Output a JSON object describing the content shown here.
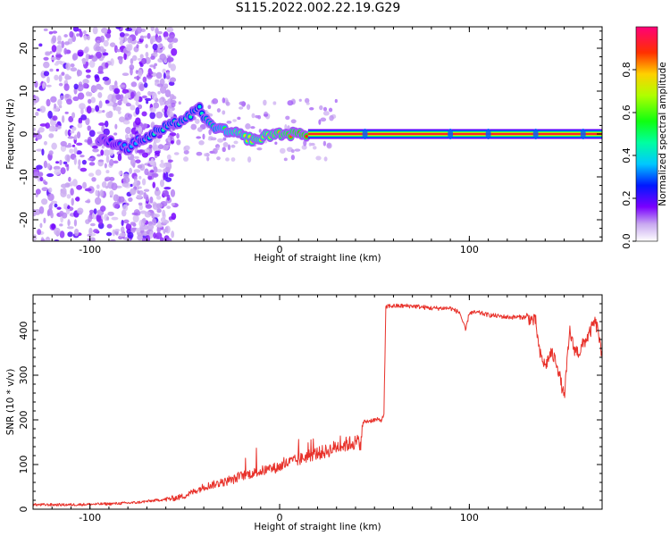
{
  "title": "S115.2022.002.22.19.G29",
  "chart_data": [
    {
      "type": "heatmap",
      "title": "S115.2022.002.22.19.G29",
      "xlabel": "Height of straight line (km)",
      "ylabel": "Frequency (Hz)",
      "xlim": [
        -130,
        170
      ],
      "ylim": [
        -25,
        25
      ],
      "xticks": [
        -100,
        0,
        100
      ],
      "yticks": [
        -20,
        -10,
        0,
        10,
        20
      ],
      "xtick_labels": [
        "-100",
        "0",
        "100"
      ],
      "ytick_labels": [
        "-20",
        "-10",
        "0",
        "10",
        "20"
      ],
      "colorbar": {
        "label": "Normalized spectral amplitude",
        "range": [
          0,
          1
        ],
        "ticks": [
          0.0,
          0.2,
          0.4,
          0.6,
          0.8
        ],
        "tick_labels": [
          "0.0",
          "0.2",
          "0.4",
          "0.6",
          "0.8"
        ]
      },
      "noise_region": {
        "x_range": [
          -130,
          -60
        ],
        "freq_range": [
          -25,
          25
        ]
      },
      "ridge": [
        {
          "x": -95,
          "f": -1.5,
          "amp": 0.2
        },
        {
          "x": -90,
          "f": -1.8,
          "amp": 0.25
        },
        {
          "x": -85,
          "f": -2.2,
          "amp": 0.3
        },
        {
          "x": -80,
          "f": -3.5,
          "amp": 0.35
        },
        {
          "x": -75,
          "f": -1.5,
          "amp": 0.35
        },
        {
          "x": -70,
          "f": -1.0,
          "amp": 0.4
        },
        {
          "x": -65,
          "f": 0.5,
          "amp": 0.45
        },
        {
          "x": -60,
          "f": 1.5,
          "amp": 0.45
        },
        {
          "x": -55,
          "f": 2.5,
          "amp": 0.45
        },
        {
          "x": -50,
          "f": 3.5,
          "amp": 0.45
        },
        {
          "x": -45,
          "f": 5.0,
          "amp": 0.45
        },
        {
          "x": -42,
          "f": 6.0,
          "amp": 0.4
        },
        {
          "x": -38,
          "f": 2.5,
          "amp": 0.5
        },
        {
          "x": -33,
          "f": 1.5,
          "amp": 0.55
        },
        {
          "x": -28,
          "f": 0.5,
          "amp": 0.6
        },
        {
          "x": -22,
          "f": 0.0,
          "amp": 0.7
        },
        {
          "x": -17,
          "f": -1.0,
          "amp": 0.7
        },
        {
          "x": -12,
          "f": -1.5,
          "amp": 0.75
        },
        {
          "x": -8,
          "f": -0.5,
          "amp": 0.75
        },
        {
          "x": -3,
          "f": 0.0,
          "amp": 0.8
        },
        {
          "x": 5,
          "f": 0.0,
          "amp": 0.85
        },
        {
          "x": 15,
          "f": 0.0,
          "amp": 0.9
        },
        {
          "x": 50,
          "f": 0.0,
          "amp": 0.92
        },
        {
          "x": 100,
          "f": 0.0,
          "amp": 0.92
        },
        {
          "x": 170,
          "f": 0.0,
          "amp": 0.92
        }
      ]
    },
    {
      "type": "line",
      "xlabel": "Height of straight line (km)",
      "ylabel": "SNR (10 * v/v)",
      "xlim": [
        -130,
        170
      ],
      "ylim": [
        0,
        480
      ],
      "xticks": [
        -100,
        0,
        100
      ],
      "yticks": [
        0,
        100,
        200,
        300,
        400
      ],
      "xtick_labels": [
        "-100",
        "0",
        "100"
      ],
      "ytick_labels": [
        "0",
        "100",
        "200",
        "300",
        "400"
      ],
      "series": [
        {
          "name": "SNR",
          "color": "#e8322b",
          "x": [
            -130,
            -110,
            -90,
            -75,
            -65,
            -60,
            -55,
            -50,
            -45,
            -40,
            -35,
            -30,
            -25,
            -20,
            -15,
            -10,
            -5,
            0,
            5,
            10,
            15,
            20,
            25,
            30,
            35,
            40,
            43,
            44,
            50,
            54,
            55,
            56,
            57,
            60,
            70,
            80,
            90,
            95,
            98,
            100,
            105,
            110,
            120,
            130,
            135,
            137,
            140,
            143,
            146,
            150,
            153,
            155,
            158,
            160,
            163,
            166,
            168,
            170
          ],
          "y": [
            10,
            10,
            12,
            15,
            20,
            22,
            25,
            30,
            40,
            50,
            55,
            60,
            65,
            75,
            80,
            85,
            90,
            95,
            105,
            110,
            120,
            125,
            130,
            140,
            145,
            150,
            150,
            195,
            200,
            200,
            215,
            450,
            455,
            455,
            455,
            450,
            450,
            440,
            400,
            440,
            440,
            435,
            430,
            430,
            420,
            350,
            320,
            350,
            330,
            250,
            400,
            360,
            350,
            370,
            390,
            420,
            400,
            330
          ]
        }
      ]
    }
  ]
}
